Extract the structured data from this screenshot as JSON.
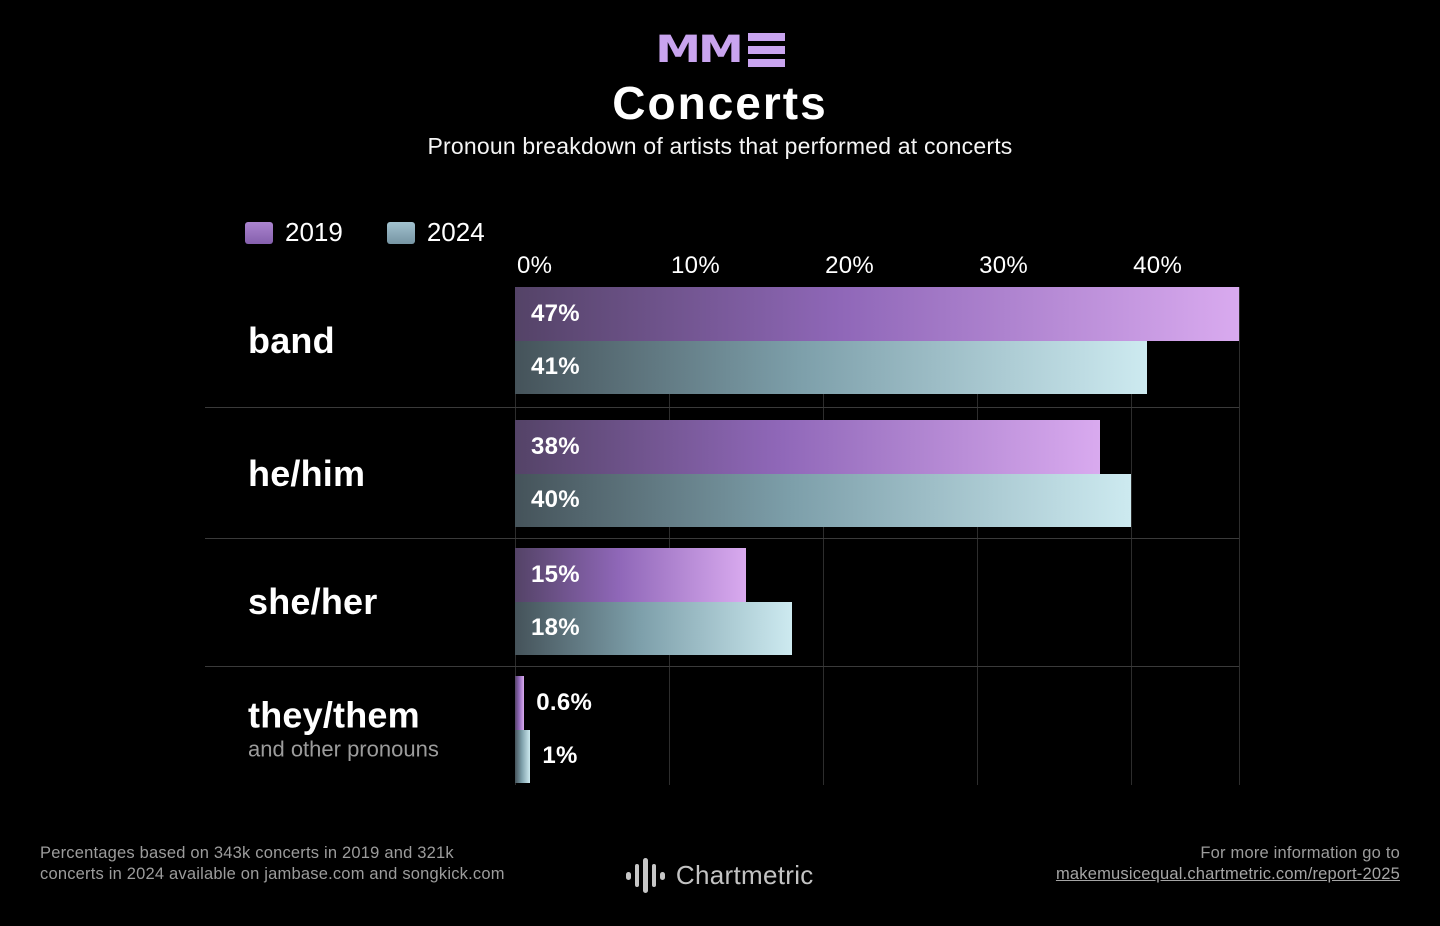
{
  "header": {
    "logo_text": "MM",
    "title": "Concerts",
    "subtitle": "Pronoun breakdown of artists that performed at concerts"
  },
  "legend": {
    "items": [
      {
        "label": "2019",
        "swatch_top": "#ab84cf",
        "swatch_bottom": "#8560ad"
      },
      {
        "label": "2024",
        "swatch_top": "#a2c2cf",
        "swatch_bottom": "#7695a3"
      }
    ]
  },
  "chart_data": {
    "type": "bar",
    "orientation": "horizontal",
    "title": "Concerts",
    "subtitle": "Pronoun breakdown of artists that performed at concerts",
    "categories": [
      "band",
      "he/him",
      "she/her",
      "they/them"
    ],
    "category_subtitles": [
      "",
      "",
      "",
      "and other pronouns"
    ],
    "series": [
      {
        "name": "2019",
        "values": [
          47,
          38,
          15,
          0.6
        ],
        "labels": [
          "47%",
          "38%",
          "15%",
          "0.6%"
        ]
      },
      {
        "name": "2024",
        "values": [
          41,
          40,
          18,
          1
        ],
        "labels": [
          "41%",
          "40%",
          "18%",
          "1%"
        ]
      }
    ],
    "xtick_labels": [
      "0%",
      "10%",
      "20%",
      "30%",
      "40%"
    ],
    "xtick_values": [
      0,
      10,
      20,
      30,
      40
    ],
    "xlim": [
      0,
      47
    ],
    "unit": "%",
    "grid": true,
    "legend_position": "top-left",
    "value_labels": "inside-start, outside for small bars"
  },
  "colors": {
    "background": "#000000",
    "accent_purple": "#c9a4ef",
    "bar_2019_start": "#544367",
    "bar_2019_mid": "#8f67b8",
    "bar_2019_end": "#d9aaef",
    "bar_2024_start": "#45535a",
    "bar_2024_mid": "#7d9faa",
    "bar_2024_end": "#cdeaf0",
    "gridline": "#2d2d2d",
    "divider": "#3a3a3a",
    "muted_text": "#9c9c9c"
  },
  "footer": {
    "note_line1": "Percentages based on 343k concerts in 2019 and 321k",
    "note_line2": "concerts in 2024 available on jambase.com and songkick.com",
    "brand": "Chartmetric",
    "info_line1": "For more information go to",
    "info_link": "makemusicequal.chartmetric.com/report-2025"
  }
}
